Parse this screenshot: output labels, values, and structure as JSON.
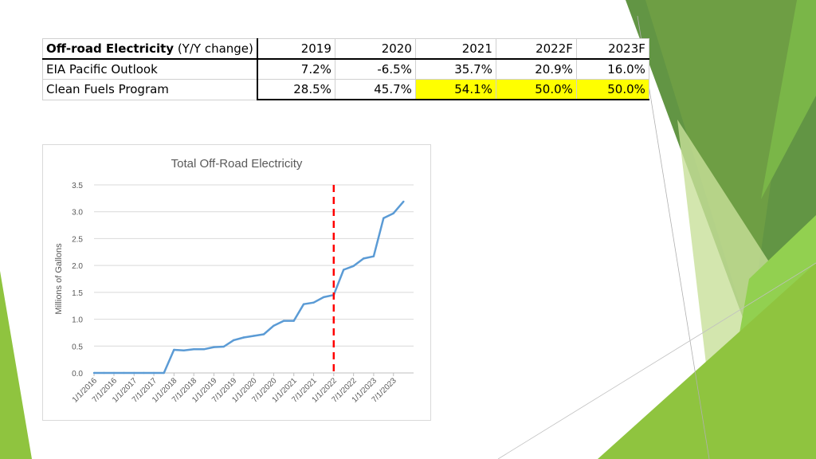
{
  "table": {
    "header": {
      "label_bold": "Off-road Electricity",
      "label_rest": " (Y/Y change)",
      "years": [
        "2019",
        "2020",
        "2021",
        "2022F",
        "2023F"
      ]
    },
    "rows": [
      {
        "label": "EIA Pacific Outlook",
        "values": [
          "7.2%",
          "-6.5%",
          "35.7%",
          "20.9%",
          "16.0%"
        ],
        "highlight": [
          false,
          false,
          false,
          false,
          false
        ]
      },
      {
        "label": "Clean Fuels Program",
        "values": [
          "28.5%",
          "45.7%",
          "54.1%",
          "50.0%",
          "50.0%"
        ],
        "highlight": [
          false,
          false,
          true,
          true,
          true
        ]
      }
    ],
    "highlight_color": "#ffff00"
  },
  "chart_data": {
    "type": "line",
    "title": "Total Off-Road Electricity",
    "xlabel": "",
    "ylabel": "Millions of Gallons",
    "ylim": [
      0,
      3.5
    ],
    "yticks": [
      "0.0",
      "0.5",
      "1.0",
      "1.5",
      "2.0",
      "2.5",
      "3.0",
      "3.5"
    ],
    "categories": [
      "1/1/2016",
      "7/1/2016",
      "1/1/2017",
      "7/1/2017",
      "1/1/2018",
      "7/1/2018",
      "1/1/2019",
      "7/1/2019",
      "1/1/2020",
      "7/1/2020",
      "1/1/2021",
      "7/1/2021",
      "1/1/2022",
      "7/1/2022",
      "1/1/2023",
      "7/1/2023"
    ],
    "series": [
      {
        "x": [
          "1/1/2016",
          "4/1/2016",
          "7/1/2016",
          "10/1/2016",
          "1/1/2017",
          "4/1/2017",
          "7/1/2017",
          "10/1/2017",
          "1/1/2018",
          "4/1/2018",
          "7/1/2018",
          "10/1/2018",
          "1/1/2019",
          "4/1/2019",
          "7/1/2019",
          "10/1/2019",
          "1/1/2020",
          "4/1/2020",
          "7/1/2020",
          "10/1/2020",
          "1/1/2021",
          "4/1/2021",
          "7/1/2021",
          "10/1/2021",
          "1/1/2022",
          "4/1/2022",
          "7/1/2022",
          "10/1/2022",
          "1/1/2023",
          "4/1/2023",
          "7/1/2023",
          "10/1/2023"
        ],
        "values": [
          0,
          0,
          0,
          0,
          0,
          0,
          0,
          0,
          0.43,
          0.42,
          0.44,
          0.44,
          0.48,
          0.49,
          0.61,
          0.66,
          0.69,
          0.72,
          0.88,
          0.97,
          0.97,
          1.28,
          1.31,
          1.41,
          1.45,
          1.92,
          1.99,
          2.13,
          2.17,
          2.88,
          2.97,
          3.19
        ],
        "color": "#5b9bd5"
      }
    ],
    "forecast_divider": {
      "x": "1/1/2022",
      "color": "#ff0000"
    },
    "grid": true,
    "legend": "none"
  },
  "colors": {
    "green_light": "#92d050",
    "green_mid": "#7ab648",
    "green_dark": "#5a8f3a",
    "green_pale": "#d4e8b0"
  }
}
